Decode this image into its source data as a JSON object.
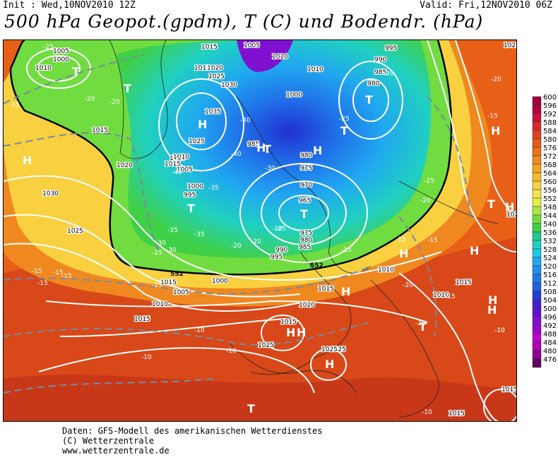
{
  "header": {
    "init": "Init : Wed,10NOV2010 12Z",
    "valid": "Valid: Fri,12NOV2010 06Z",
    "title": "500 hPa Geopot.(gpdm), T (C) und Bodendr. (hPa)"
  },
  "colorbar": {
    "levels": [
      "600",
      "596",
      "592",
      "588",
      "584",
      "580",
      "576",
      "572",
      "568",
      "564",
      "560",
      "556",
      "552",
      "548",
      "544",
      "540",
      "536",
      "532",
      "528",
      "524",
      "520",
      "516",
      "512",
      "508",
      "504",
      "500",
      "496",
      "492",
      "488",
      "484",
      "480",
      "476"
    ],
    "colors": [
      "#a0003c",
      "#b4003c",
      "#c8103c",
      "#d82828",
      "#e04020",
      "#e85818",
      "#f07018",
      "#f08820",
      "#f8a020",
      "#f8b830",
      "#f8d040",
      "#f8e050",
      "#e0f040",
      "#a8e840",
      "#70dc40",
      "#40d048",
      "#20c890",
      "#20d0c0",
      "#20c8e8",
      "#20a8f0",
      "#2090f0",
      "#2078e8",
      "#2060e0",
      "#2040d8",
      "#4020d0",
      "#6010d0",
      "#8010d0",
      "#a000d0",
      "#c000d0",
      "#b000b0",
      "#900090",
      "#600060"
    ]
  },
  "map": {
    "pressure_labels": [
      {
        "t": "1005"
      },
      {
        "t": "1000"
      },
      {
        "t": "1015"
      },
      {
        "t": "1010"
      },
      {
        "t": "1005"
      },
      {
        "t": "1010"
      },
      {
        "t": "1000"
      },
      {
        "t": "995"
      },
      {
        "t": "990"
      },
      {
        "t": "985"
      },
      {
        "t": "980"
      },
      {
        "t": "1015"
      },
      {
        "t": "1020"
      },
      {
        "t": "1025"
      },
      {
        "t": "1030"
      },
      {
        "t": "1035"
      },
      {
        "t": "1025"
      },
      {
        "t": "1020"
      },
      {
        "t": "1015"
      },
      {
        "t": "1010"
      },
      {
        "t": "1005"
      },
      {
        "t": "1000"
      },
      {
        "t": "995"
      },
      {
        "t": "985"
      },
      {
        "t": "980"
      },
      {
        "t": "975"
      },
      {
        "t": "970"
      },
      {
        "t": "965"
      },
      {
        "t": "975"
      },
      {
        "t": "980"
      },
      {
        "t": "985"
      },
      {
        "t": "990"
      },
      {
        "t": "995"
      },
      {
        "t": "1010"
      },
      {
        "t": "1020"
      },
      {
        "t": "1030"
      },
      {
        "t": "1025"
      },
      {
        "t": "1015"
      },
      {
        "t": "1015"
      },
      {
        "t": "1005"
      },
      {
        "t": "1000"
      },
      {
        "t": "1010"
      },
      {
        "t": "1015"
      },
      {
        "t": "1020"
      },
      {
        "t": "1010"
      },
      {
        "t": "1015"
      },
      {
        "t": "1010"
      },
      {
        "t": "1015"
      },
      {
        "t": "1025"
      },
      {
        "t": "1025"
      },
      {
        "t": "1025"
      },
      {
        "t": "1015"
      },
      {
        "t": "1015"
      },
      {
        "t": "1015"
      },
      {
        "t": "1025"
      },
      {
        "t": "1020"
      }
    ],
    "temp_labels": [
      "-25",
      "-20",
      "-20",
      "-15",
      "-15",
      "-15",
      "-30",
      "-35",
      "-40",
      "-40",
      "-35",
      "-35",
      "-30",
      "-25",
      "-20",
      "-20",
      "-15",
      "-25",
      "-30",
      "-25",
      "-20",
      "-20",
      "-15",
      "-25",
      "-20",
      "-15",
      "-15",
      "-20",
      "-15",
      "-10",
      "-10",
      "-10",
      "-10",
      "-10",
      "-10",
      "-15",
      "-15",
      "-20",
      "-40",
      "-25",
      "-20"
    ],
    "centers": [
      "T",
      "T",
      "T",
      "T",
      "T",
      "H",
      "H",
      "H",
      "H",
      "T",
      "T",
      "H",
      "H",
      "H",
      "H",
      "H",
      "T",
      "H",
      "H",
      "H",
      "T",
      "T",
      "H",
      "H"
    ],
    "gpdm_labels": [
      "552",
      "552"
    ]
  },
  "footer": {
    "line1": "Daten: GFS-Modell des amerikanischen Wetterdienstes",
    "line2": "(C) Wetterzentrale",
    "line3": "www.wetterzentrale.de"
  }
}
